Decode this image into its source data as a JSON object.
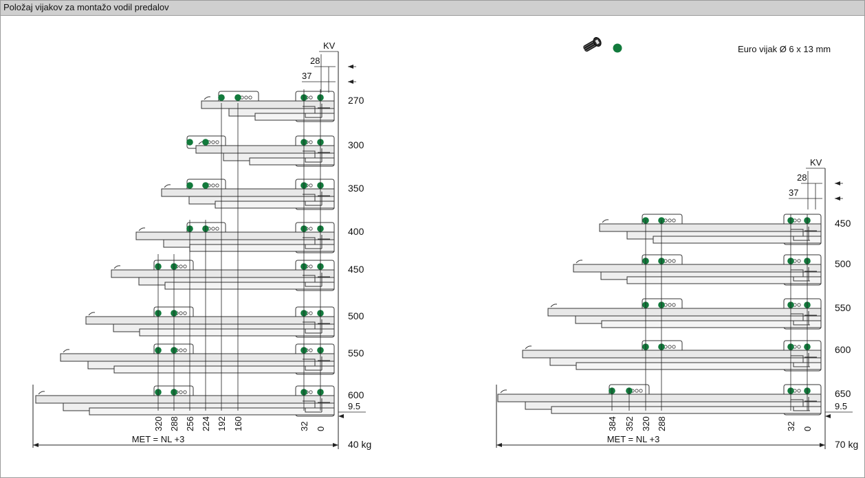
{
  "title": "Položaj vijakov za montažo vodil predalov",
  "legend": {
    "label": "Euro vijak  Ø 6 x 13 mm",
    "icon": "screw-icon",
    "dot_color": "#127a3c"
  },
  "colors": {
    "screw_dot": "#127a3c",
    "rail_fill": "#e6e6e6",
    "line": "#222222"
  },
  "left_diagram": {
    "lengths": [
      "270",
      "300",
      "350",
      "400",
      "450",
      "500",
      "550",
      "600"
    ],
    "screw_positions": [
      "320",
      "288",
      "256",
      "224",
      "192",
      "160",
      "32",
      "0"
    ],
    "top_dims": [
      "KV",
      "28",
      "37"
    ],
    "offset_label": "9.5",
    "met_label": "MET = NL +3",
    "load_label": "40 kg"
  },
  "right_diagram": {
    "lengths": [
      "450",
      "500",
      "550",
      "600",
      "650"
    ],
    "screw_positions": [
      "384",
      "352",
      "320",
      "288",
      "32",
      "0"
    ],
    "top_dims": [
      "KV",
      "28",
      "37"
    ],
    "offset_label": "9.5",
    "met_label": "MET = NL +3",
    "load_label": "70 kg"
  }
}
